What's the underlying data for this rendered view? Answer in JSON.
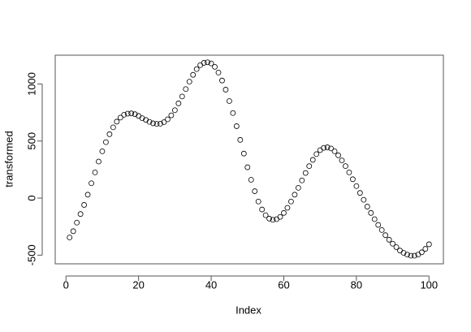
{
  "chart_data": {
    "type": "scatter",
    "x_label": "Index",
    "y_label": "transformed",
    "x": [
      1,
      2,
      3,
      4,
      5,
      6,
      7,
      8,
      9,
      10,
      11,
      12,
      13,
      14,
      15,
      16,
      17,
      18,
      19,
      20,
      21,
      22,
      23,
      24,
      25,
      26,
      27,
      28,
      29,
      30,
      31,
      32,
      33,
      34,
      35,
      36,
      37,
      38,
      39,
      40,
      41,
      42,
      43,
      44,
      45,
      46,
      47,
      48,
      49,
      50,
      51,
      52,
      53,
      54,
      55,
      56,
      57,
      58,
      59,
      60,
      61,
      62,
      63,
      64,
      65,
      66,
      67,
      68,
      69,
      70,
      71,
      72,
      73,
      74,
      75,
      76,
      77,
      78,
      79,
      80,
      81,
      82,
      83,
      84,
      85,
      86,
      87,
      88,
      89,
      90,
      91,
      92,
      93,
      94,
      95,
      96,
      97,
      98,
      99,
      100
    ],
    "values": [
      -345,
      -290,
      -215,
      -140,
      -60,
      30,
      130,
      225,
      320,
      410,
      490,
      560,
      620,
      670,
      705,
      730,
      740,
      742,
      735,
      720,
      700,
      685,
      668,
      655,
      650,
      652,
      665,
      690,
      725,
      770,
      830,
      890,
      955,
      1020,
      1080,
      1130,
      1165,
      1185,
      1190,
      1180,
      1150,
      1100,
      1030,
      950,
      850,
      745,
      630,
      510,
      390,
      270,
      160,
      60,
      -30,
      -100,
      -150,
      -180,
      -190,
      -185,
      -165,
      -130,
      -85,
      -30,
      30,
      90,
      155,
      220,
      280,
      335,
      385,
      420,
      440,
      445,
      435,
      410,
      375,
      330,
      280,
      225,
      165,
      105,
      45,
      -15,
      -75,
      -130,
      -185,
      -235,
      -280,
      -325,
      -365,
      -400,
      -430,
      -460,
      -480,
      -495,
      -505,
      -505,
      -495,
      -475,
      -445,
      -405
    ],
    "color": "#000000",
    "xlim": [
      -2.96,
      103.96
    ],
    "ylim": [
      -576,
      1252
    ],
    "xticks": [
      0,
      20,
      40,
      60,
      80,
      100
    ],
    "yticks": [
      -500,
      0,
      500,
      1000
    ]
  }
}
